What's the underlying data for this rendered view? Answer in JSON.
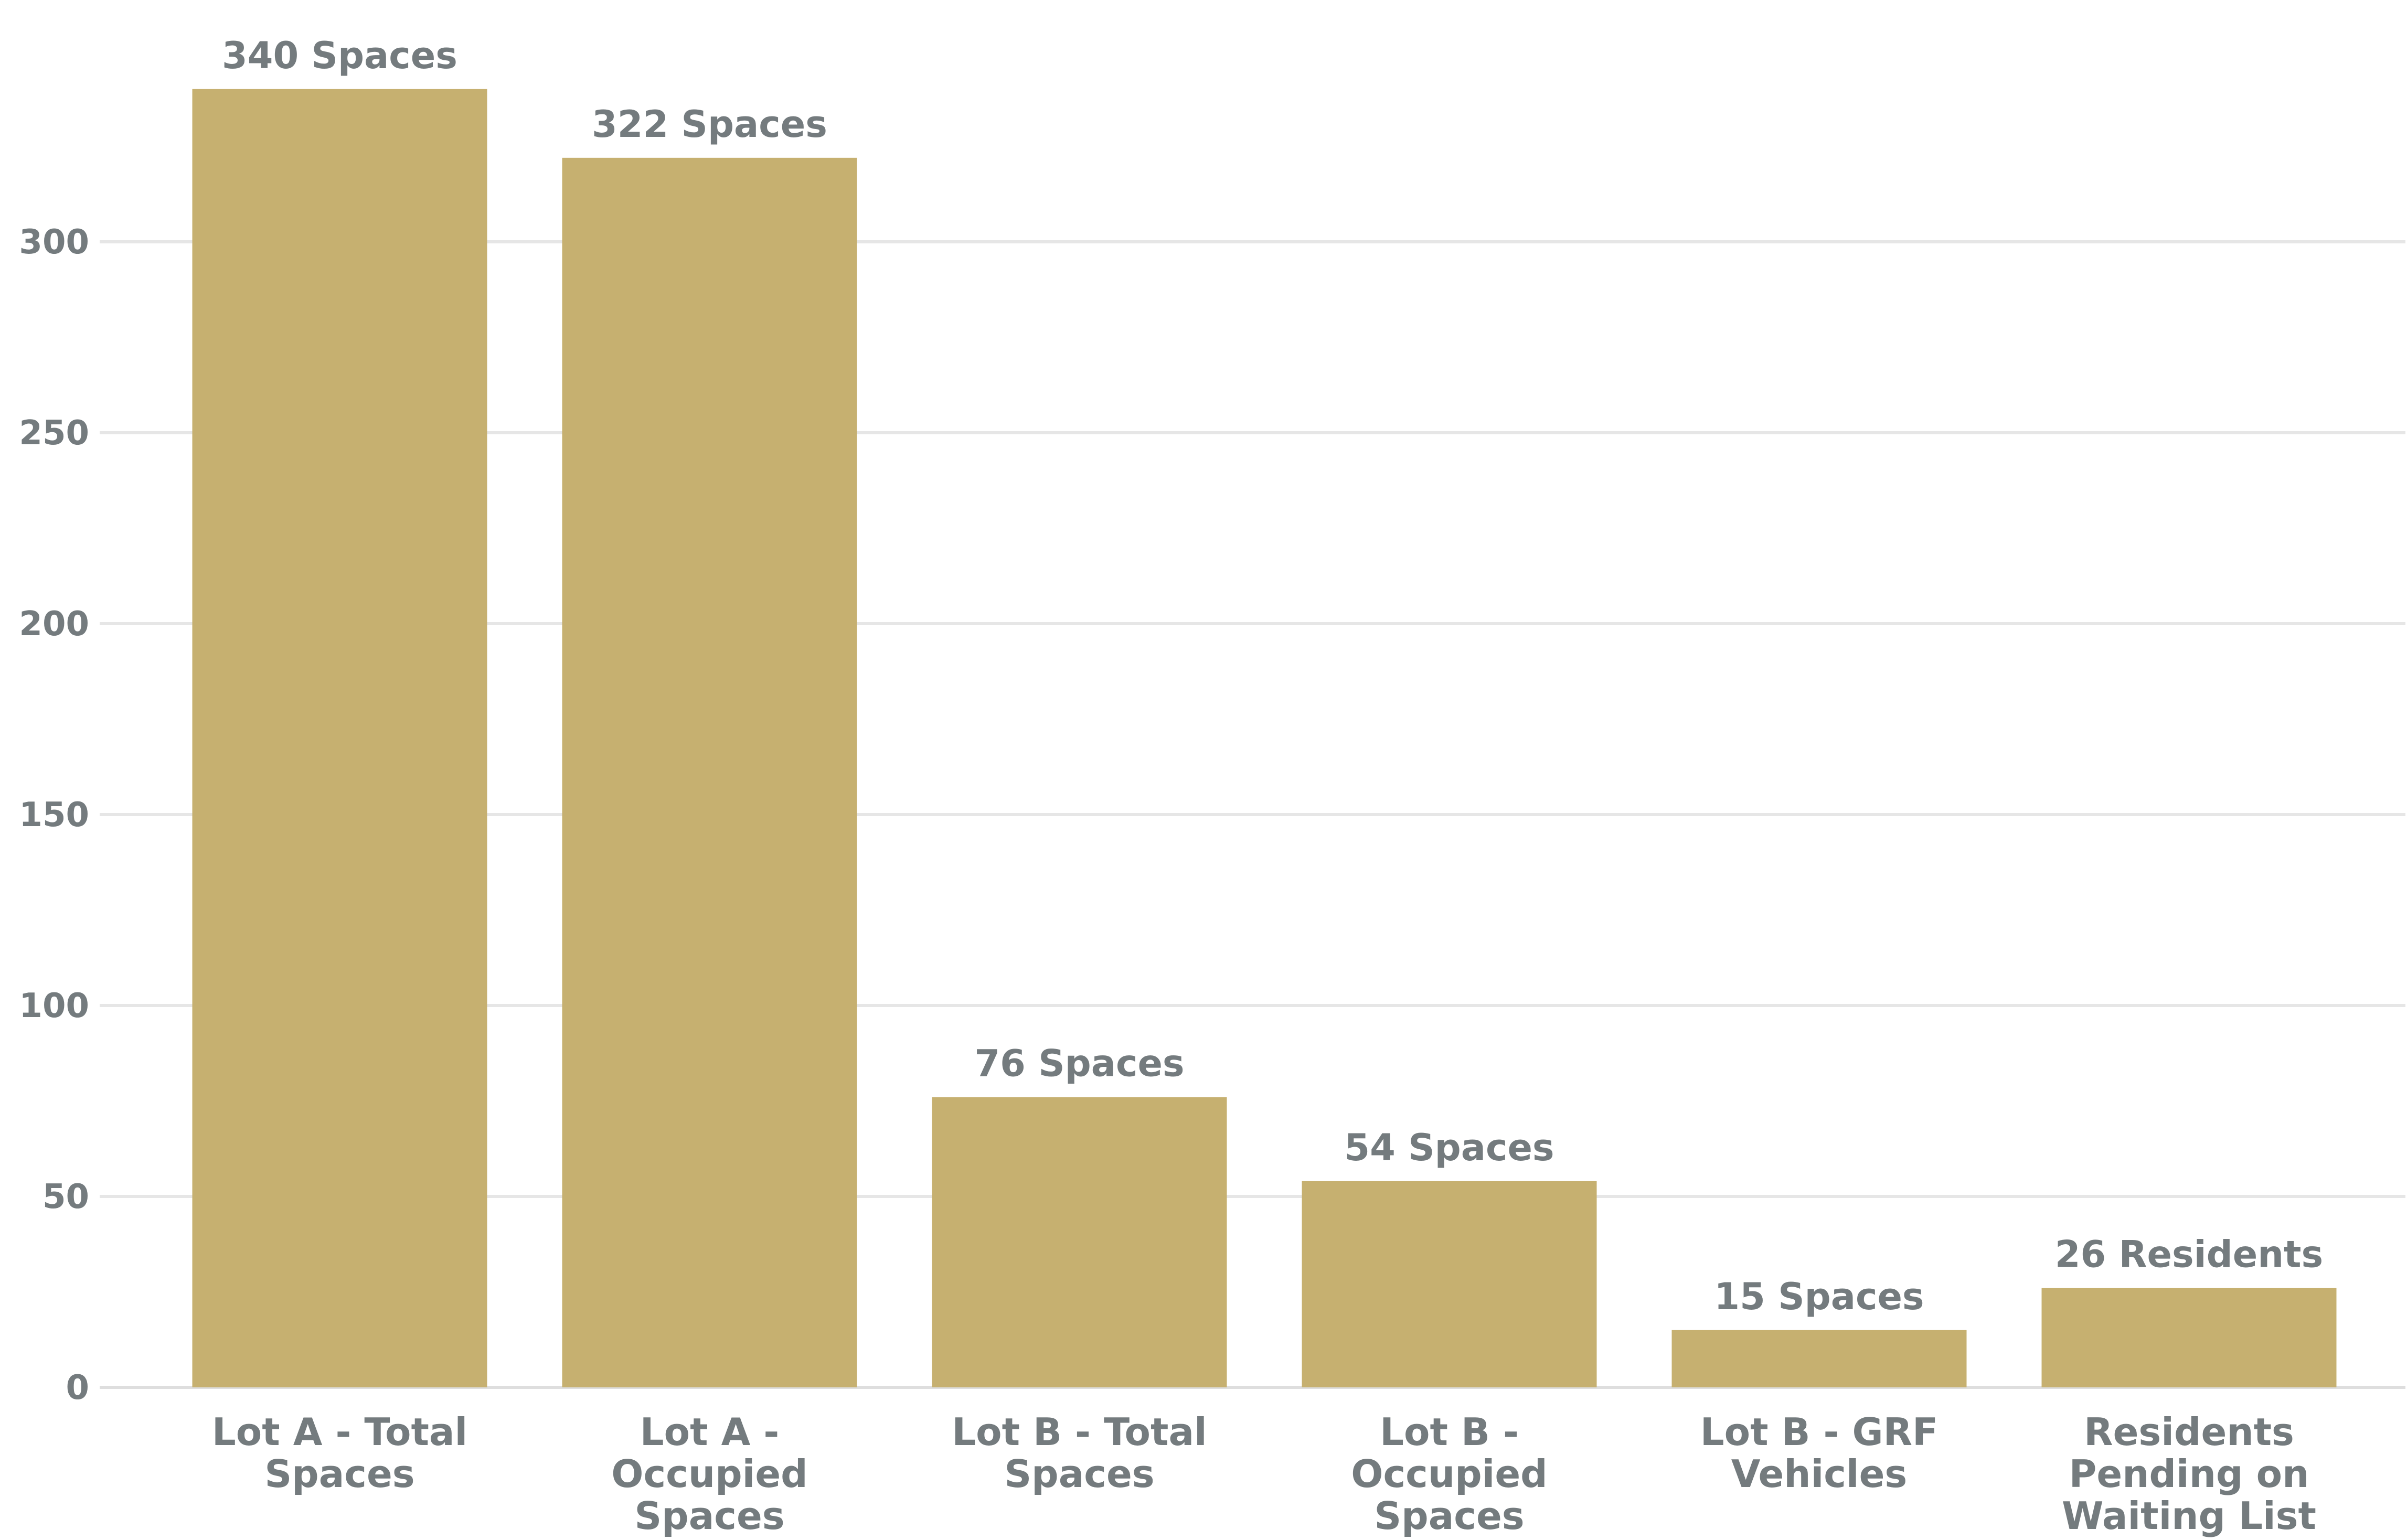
{
  "chart_data": {
    "type": "bar",
    "categories": [
      [
        "Lot A - Total",
        "Spaces"
      ],
      [
        "Lot A -",
        "Occupied",
        "Spaces"
      ],
      [
        "Lot B - Total",
        "Spaces"
      ],
      [
        "Lot B -",
        "Occupied",
        "Spaces"
      ],
      [
        "Lot B - GRF",
        "Vehicles"
      ],
      [
        "Residents",
        "Pending on",
        "Waiting List"
      ]
    ],
    "values": [
      340,
      322,
      76,
      54,
      15,
      26
    ],
    "data_labels": [
      "340 Spaces",
      "322 Spaces",
      "76 Spaces",
      "54 Spaces",
      "15 Spaces",
      "26 Residents"
    ],
    "ylim": [
      0,
      340
    ],
    "yticks": [
      0,
      50,
      100,
      150,
      200,
      250,
      300
    ],
    "grid": true,
    "bar_color": "#c6b070",
    "text_color": "#747b7e",
    "title": "",
    "xlabel": "",
    "ylabel": ""
  }
}
